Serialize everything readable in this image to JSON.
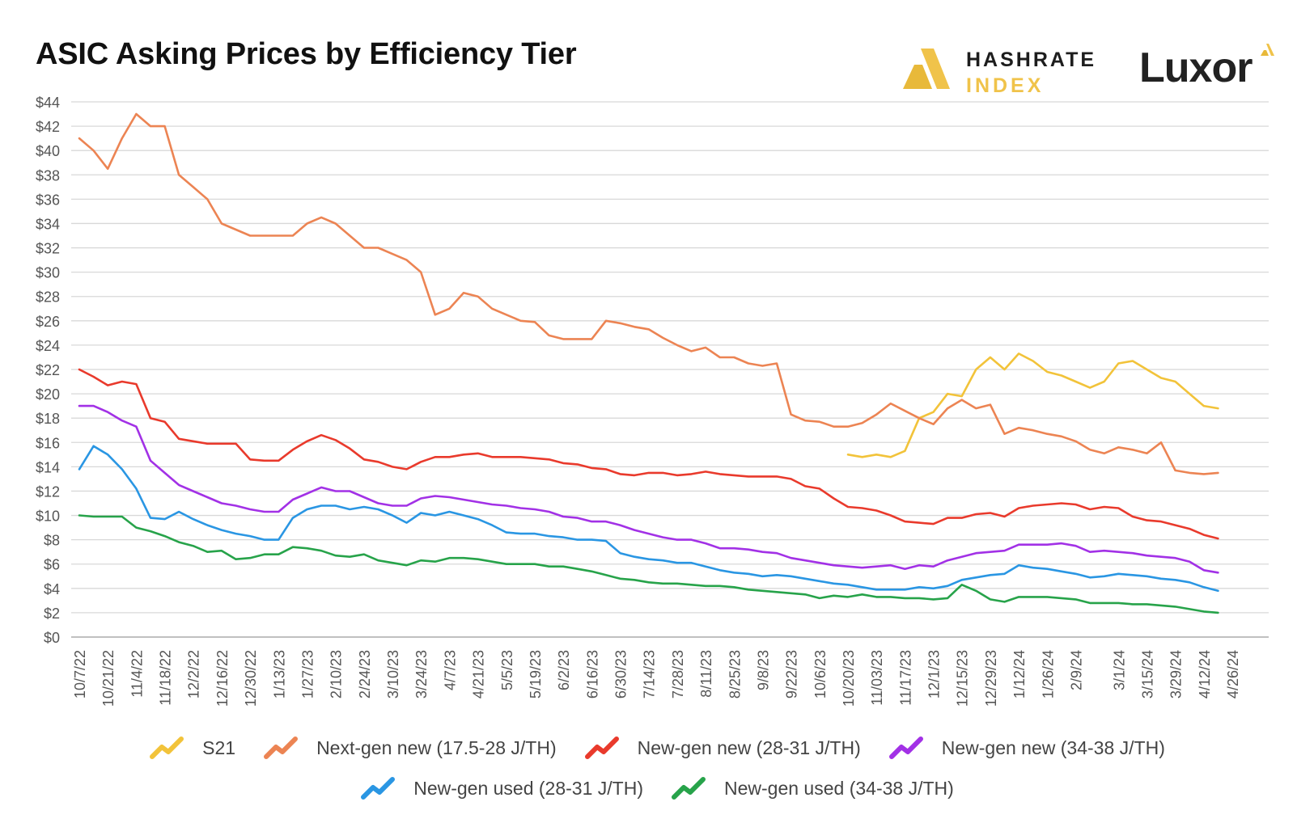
{
  "header": {
    "title": "ASIC Asking Prices by Efficiency Tier",
    "brand1_line1": "HASHRATE",
    "brand1_line2": "INDEX",
    "brand2": "Luxor"
  },
  "chart_data": {
    "type": "line",
    "title": "ASIC Asking Prices by Efficiency Tier",
    "xlabel": "",
    "ylabel": "",
    "ylim": [
      0,
      44
    ],
    "yticks": [
      0,
      2,
      4,
      6,
      8,
      10,
      12,
      14,
      16,
      18,
      20,
      22,
      24,
      26,
      28,
      30,
      32,
      34,
      36,
      38,
      40,
      42,
      44
    ],
    "ytick_labels": [
      "$0",
      "$2",
      "$4",
      "$6",
      "$8",
      "$10",
      "$12",
      "$14",
      "$16",
      "$18",
      "$20",
      "$22",
      "$24",
      "$26",
      "$28",
      "$30",
      "$32",
      "$34",
      "$36",
      "$38",
      "$40",
      "$42",
      "$44"
    ],
    "grid": true,
    "legend_position": "bottom",
    "x_count": 82,
    "xtick_labels": [
      "10/7/22",
      "10/21/22",
      "11/4/22",
      "11/18/22",
      "12/2/22",
      "12/16/22",
      "12/30/22",
      "1/13/23",
      "1/27/23",
      "2/10/23",
      "2/24/23",
      "3/10/23",
      "3/24/23",
      "4/7/23",
      "4/21/23",
      "5/5/23",
      "5/19/23",
      "6/2/23",
      "6/16/23",
      "6/30/23",
      "7/14/23",
      "7/28/23",
      "8/11/23",
      "8/25/23",
      "9/8/23",
      "9/22/23",
      "10/6/23",
      "10/20/23",
      "11/03/23",
      "11/17/23",
      "12/1/23",
      "12/15/23",
      "12/29/23",
      "1/12/24",
      "1/26/24",
      "2/9/24",
      "3/1/24",
      "3/15/24",
      "3/29/24",
      "4/12/24",
      "4/26/24"
    ],
    "xtick_index": [
      0,
      2,
      4,
      6,
      8,
      10,
      12,
      14,
      16,
      18,
      20,
      22,
      24,
      26,
      28,
      30,
      32,
      34,
      36,
      38,
      40,
      42,
      44,
      46,
      48,
      50,
      52,
      54,
      56,
      58,
      60,
      62,
      64,
      66,
      68,
      70,
      73,
      75,
      77,
      79,
      81
    ],
    "series": [
      {
        "name": "S21",
        "color": "#f2c33a",
        "start": 54,
        "values": [
          15,
          14.8,
          15,
          14.8,
          15.3,
          18,
          18.5,
          20,
          19.8,
          22,
          23,
          22,
          23.3,
          22.7,
          21.8,
          21.5,
          21,
          20.5,
          21,
          22.5,
          22.7,
          22,
          21.3,
          21,
          20,
          19,
          18.8
        ]
      },
      {
        "name": "Next-gen new (17.5-28 J/TH)",
        "color": "#ec8453",
        "start": 0,
        "values": [
          41,
          40,
          38.5,
          41,
          43,
          42,
          42,
          38,
          37,
          36,
          34,
          33.5,
          33,
          33,
          33,
          33,
          34,
          34.5,
          34,
          33,
          32,
          32,
          31.5,
          31,
          30,
          26.5,
          27,
          28.3,
          28,
          27,
          26.5,
          26,
          25.9,
          24.8,
          24.5,
          24.5,
          24.5,
          26,
          25.8,
          25.5,
          25.3,
          24.6,
          24,
          23.5,
          23.8,
          23,
          23,
          22.5,
          22.3,
          22.5,
          18.3,
          17.8,
          17.7,
          17.3,
          17.3,
          17.6,
          18.3,
          19.2,
          18.6,
          18,
          17.5,
          18.8,
          19.5,
          18.8,
          19.1,
          16.7,
          17.2,
          17,
          16.7,
          16.5,
          16.1,
          15.4,
          15.1,
          15.6,
          15.4,
          15.1,
          16,
          13.7,
          13.5,
          13.4,
          13.5
        ]
      },
      {
        "name": "New-gen new (28-31 J/TH)",
        "color": "#e93a2c",
        "start": 0,
        "values": [
          22,
          21.4,
          20.7,
          21,
          20.8,
          18,
          17.7,
          16.3,
          16.1,
          15.9,
          15.9,
          15.9,
          14.6,
          14.5,
          14.5,
          15.4,
          16.1,
          16.6,
          16.2,
          15.5,
          14.6,
          14.4,
          14,
          13.8,
          14.4,
          14.8,
          14.8,
          15,
          15.1,
          14.8,
          14.8,
          14.8,
          14.7,
          14.6,
          14.3,
          14.2,
          13.9,
          13.8,
          13.4,
          13.3,
          13.5,
          13.5,
          13.3,
          13.4,
          13.6,
          13.4,
          13.3,
          13.2,
          13.2,
          13.2,
          13,
          12.4,
          12.2,
          11.4,
          10.7,
          10.6,
          10.4,
          10,
          9.5,
          9.4,
          9.3,
          9.8,
          9.8,
          10.1,
          10.2,
          9.9,
          10.6,
          10.8,
          10.9,
          11,
          10.9,
          10.5,
          10.7,
          10.6,
          9.9,
          9.6,
          9.5,
          9.2,
          8.9,
          8.4,
          8.1
        ]
      },
      {
        "name": "New-gen new (34-38 J/TH)",
        "color": "#a231e6",
        "start": 0,
        "values": [
          19,
          19,
          18.5,
          17.8,
          17.3,
          14.5,
          13.5,
          12.5,
          12,
          11.5,
          11,
          10.8,
          10.5,
          10.3,
          10.3,
          11.3,
          11.8,
          12.3,
          12,
          12,
          11.5,
          11,
          10.8,
          10.8,
          11.4,
          11.6,
          11.5,
          11.3,
          11.1,
          10.9,
          10.8,
          10.6,
          10.5,
          10.3,
          9.9,
          9.8,
          9.5,
          9.5,
          9.2,
          8.8,
          8.5,
          8.2,
          8,
          8,
          7.7,
          7.3,
          7.3,
          7.2,
          7,
          6.9,
          6.5,
          6.3,
          6.1,
          5.9,
          5.8,
          5.7,
          5.8,
          5.9,
          5.6,
          5.9,
          5.8,
          6.3,
          6.6,
          6.9,
          7,
          7.1,
          7.6,
          7.6,
          7.6,
          7.7,
          7.5,
          7,
          7.1,
          7,
          6.9,
          6.7,
          6.6,
          6.5,
          6.2,
          5.5,
          5.3
        ]
      },
      {
        "name": "New-gen used (28-31 J/TH)",
        "color": "#2a96e3",
        "start": 0,
        "values": [
          13.8,
          15.7,
          15,
          13.8,
          12.2,
          9.8,
          9.7,
          10.3,
          9.7,
          9.2,
          8.8,
          8.5,
          8.3,
          8,
          8,
          9.8,
          10.5,
          10.8,
          10.8,
          10.5,
          10.7,
          10.5,
          10,
          9.4,
          10.2,
          10,
          10.3,
          10,
          9.7,
          9.2,
          8.6,
          8.5,
          8.5,
          8.3,
          8.2,
          8,
          8,
          7.9,
          6.9,
          6.6,
          6.4,
          6.3,
          6.1,
          6.1,
          5.8,
          5.5,
          5.3,
          5.2,
          5,
          5.1,
          5,
          4.8,
          4.6,
          4.4,
          4.3,
          4.1,
          3.9,
          3.9,
          3.9,
          4.1,
          4,
          4.2,
          4.7,
          4.9,
          5.1,
          5.2,
          5.9,
          5.7,
          5.6,
          5.4,
          5.2,
          4.9,
          5,
          5.2,
          5.1,
          5,
          4.8,
          4.7,
          4.5,
          4.1,
          3.8
        ]
      },
      {
        "name": "New-gen used (34-38 J/TH)",
        "color": "#27a34a",
        "start": 0,
        "values": [
          10,
          9.9,
          9.9,
          9.9,
          9,
          8.7,
          8.3,
          7.8,
          7.5,
          7,
          7.1,
          6.4,
          6.5,
          6.8,
          6.8,
          7.4,
          7.3,
          7.1,
          6.7,
          6.6,
          6.8,
          6.3,
          6.1,
          5.9,
          6.3,
          6.2,
          6.5,
          6.5,
          6.4,
          6.2,
          6,
          6,
          6,
          5.8,
          5.8,
          5.6,
          5.4,
          5.1,
          4.8,
          4.7,
          4.5,
          4.4,
          4.4,
          4.3,
          4.2,
          4.2,
          4.1,
          3.9,
          3.8,
          3.7,
          3.6,
          3.5,
          3.2,
          3.4,
          3.3,
          3.5,
          3.3,
          3.3,
          3.2,
          3.2,
          3.1,
          3.2,
          4.3,
          3.8,
          3.1,
          2.9,
          3.3,
          3.3,
          3.3,
          3.2,
          3.1,
          2.8,
          2.8,
          2.8,
          2.7,
          2.7,
          2.6,
          2.5,
          2.3,
          2.1,
          2
        ]
      }
    ]
  }
}
